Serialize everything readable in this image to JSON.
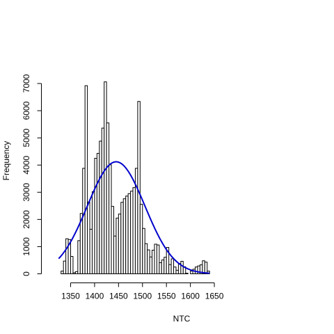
{
  "chart_data": {
    "type": "histogram",
    "xlabel": "NTC",
    "ylabel": "Frequency",
    "xlim": [
      1320,
      1650
    ],
    "ylim": [
      0,
      7000
    ],
    "x_ticks": [
      1350,
      1400,
      1450,
      1500,
      1550,
      1600,
      1650
    ],
    "y_ticks": [
      0,
      1000,
      2000,
      3000,
      4000,
      5000,
      6000,
      7000
    ],
    "bin_width": 5,
    "bins_start": 1325,
    "values": [
      0,
      100,
      470,
      1290,
      1260,
      640,
      40,
      80,
      1220,
      2220,
      3880,
      6920,
      2640,
      1640,
      3020,
      4250,
      4430,
      4880,
      5360,
      7060,
      5550,
      4010,
      2480,
      1390,
      2050,
      2200,
      2630,
      2760,
      2860,
      2950,
      3040,
      3170,
      3880,
      6340,
      2560,
      1670,
      1110,
      880,
      620,
      870,
      1090,
      1060,
      410,
      510,
      610,
      970,
      340,
      550,
      250,
      130,
      380,
      460,
      260,
      20,
      0,
      100,
      170,
      250,
      290,
      330,
      480,
      430,
      100
    ],
    "normal_curve": {
      "color": "#0000cc",
      "mean": 1445,
      "sd": 60,
      "peak": 4120
    }
  }
}
